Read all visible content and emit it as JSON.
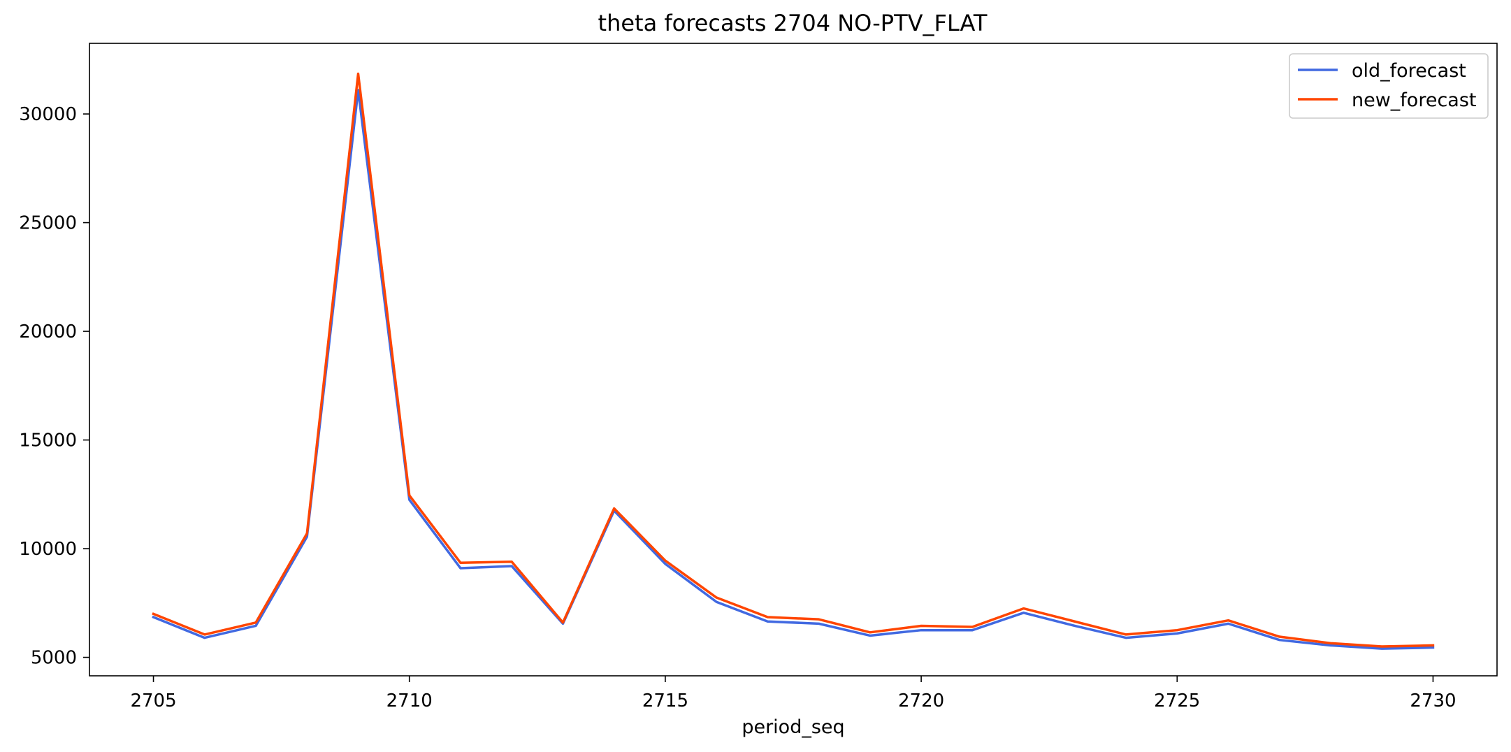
{
  "chart_data": {
    "type": "line",
    "title": "theta forecasts 2704 NO-PTV_FLAT",
    "xlabel": "period_seq",
    "ylabel": "",
    "x": [
      2705,
      2706,
      2707,
      2708,
      2709,
      2710,
      2711,
      2712,
      2713,
      2714,
      2715,
      2716,
      2717,
      2718,
      2719,
      2720,
      2721,
      2722,
      2723,
      2724,
      2725,
      2726,
      2727,
      2728,
      2729,
      2730
    ],
    "xlim": [
      2703.75,
      2731.25
    ],
    "ylim": [
      4150,
      33250
    ],
    "xticks": [
      2705,
      2710,
      2715,
      2720,
      2725,
      2730
    ],
    "xtick_labels": [
      "2705",
      "2710",
      "2715",
      "2720",
      "2725",
      "2730"
    ],
    "yticks": [
      5000,
      10000,
      15000,
      20000,
      25000,
      30000
    ],
    "ytick_labels": [
      "5000",
      "10000",
      "15000",
      "20000",
      "25000",
      "30000"
    ],
    "grid": false,
    "legend_position": "top-right",
    "series": [
      {
        "name": "old_forecast",
        "color": "#4169E1",
        "values": [
          6850,
          5900,
          6450,
          10550,
          31100,
          12250,
          9100,
          9200,
          6550,
          11750,
          9300,
          7550,
          6650,
          6550,
          6000,
          6250,
          6250,
          7050,
          6450,
          5900,
          6100,
          6550,
          5800,
          5550,
          5400,
          5450
        ]
      },
      {
        "name": "new_forecast",
        "color": "#FF4500",
        "values": [
          7000,
          6050,
          6600,
          10700,
          31850,
          12450,
          9350,
          9400,
          6600,
          11850,
          9450,
          7750,
          6850,
          6750,
          6150,
          6450,
          6400,
          7250,
          6650,
          6050,
          6250,
          6700,
          5950,
          5650,
          5500,
          5550
        ]
      }
    ]
  }
}
